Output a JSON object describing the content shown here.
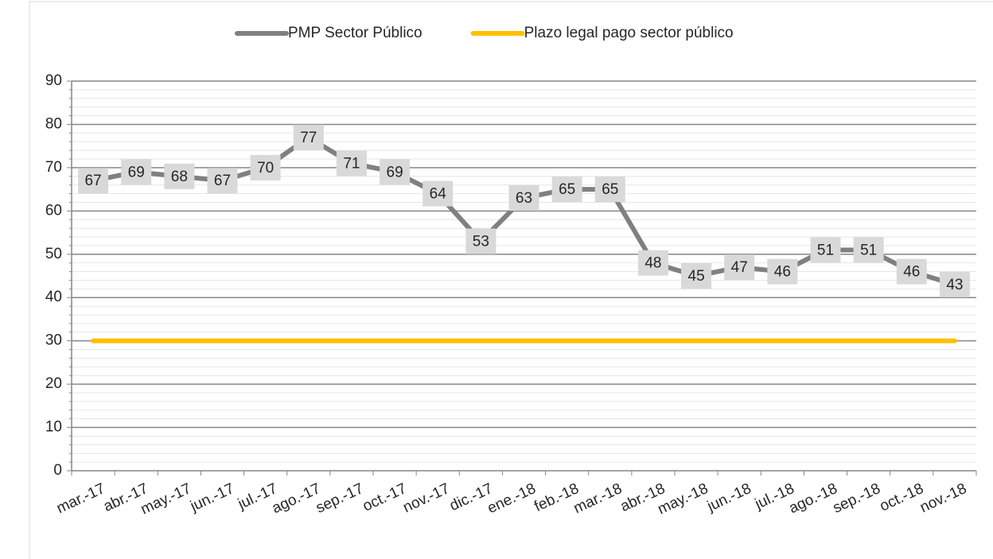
{
  "chart_data": {
    "type": "line",
    "categories": [
      "mar.-17",
      "abr.-17",
      "may.-17",
      "jun.-17",
      "jul.-17",
      "ago.-17",
      "sep.-17",
      "oct.-17",
      "nov.-17",
      "dic.-17",
      "ene.-18",
      "feb.-18",
      "mar.-18",
      "abr.-18",
      "may.-18",
      "jun.-18",
      "jul.-18",
      "ago.-18",
      "sep.-18",
      "oct.-18",
      "nov.-18"
    ],
    "series": [
      {
        "name": "PMP Sector Público",
        "color": "#808080",
        "data_labels": true,
        "values": [
          67,
          69,
          68,
          67,
          70,
          77,
          71,
          69,
          64,
          53,
          63,
          65,
          65,
          48,
          45,
          47,
          46,
          51,
          51,
          46,
          43
        ]
      },
      {
        "name": "Plazo legal pago sector público",
        "color": "#ffc000",
        "data_labels": false,
        "values": [
          30,
          30,
          30,
          30,
          30,
          30,
          30,
          30,
          30,
          30,
          30,
          30,
          30,
          30,
          30,
          30,
          30,
          30,
          30,
          30,
          30
        ]
      }
    ],
    "ylim": [
      0,
      90
    ],
    "yticks": [
      0,
      10,
      20,
      30,
      40,
      50,
      60,
      70,
      80,
      90
    ],
    "minor_yticks": [
      2,
      4,
      6,
      8,
      12,
      14,
      16,
      18,
      22,
      24,
      26,
      28,
      32,
      34,
      36,
      38,
      42,
      44,
      46,
      48,
      52,
      54,
      56,
      58,
      62,
      64,
      66,
      68,
      72,
      74,
      76,
      78,
      82,
      84,
      86,
      88
    ],
    "grid": true,
    "legend": "top"
  }
}
